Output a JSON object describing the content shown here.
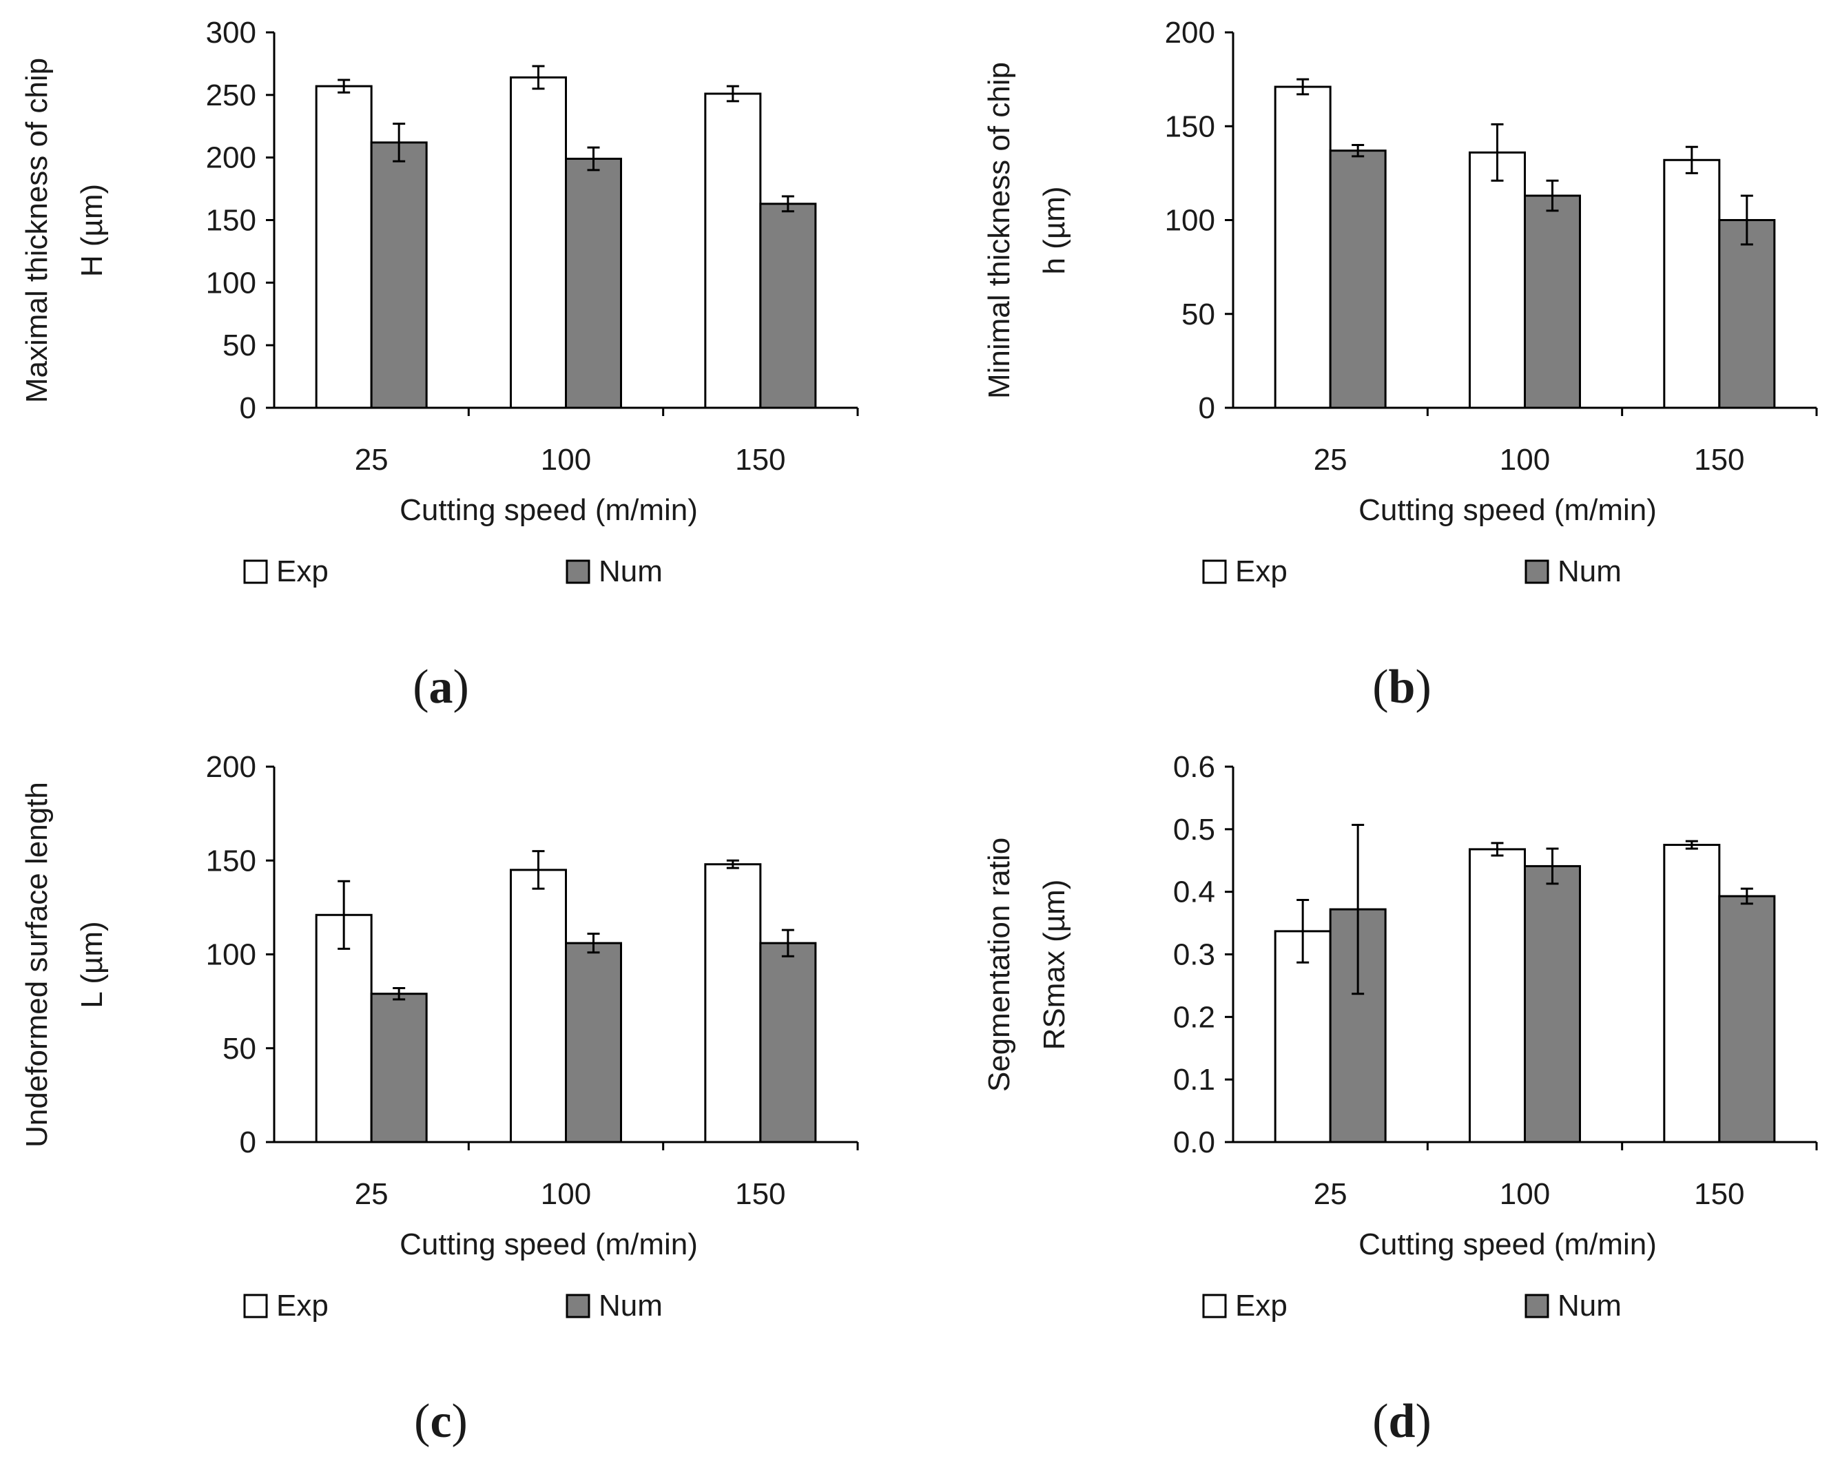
{
  "figure": {
    "type": "bar-chart-panels",
    "panels": 4
  },
  "colors": {
    "exp": "#ffffff",
    "num": "#7f7f7f",
    "axis": "#000000",
    "outline": "#000000"
  },
  "chart_data": [
    {
      "type": "bar",
      "panel": "a",
      "panel_label": {
        "open": "(",
        "letter": "a",
        "close": ")"
      },
      "ylabel": [
        "Maximal thickness of chip",
        "H (µm)"
      ],
      "xlabel": "Cutting speed (m/min)",
      "categories": [
        "25",
        "100",
        "150"
      ],
      "ylim": [
        0,
        300
      ],
      "yticks": [
        "0",
        "50",
        "100",
        "150",
        "200",
        "250",
        "300"
      ],
      "series": [
        {
          "name": "Exp",
          "values": [
            257,
            264,
            251
          ],
          "errors": [
            5,
            9,
            6
          ]
        },
        {
          "name": "Num",
          "values": [
            212,
            199,
            163
          ],
          "errors": [
            15,
            9,
            6
          ]
        }
      ]
    },
    {
      "type": "bar",
      "panel": "b",
      "panel_label": {
        "open": "(",
        "letter": "b",
        "close": ")"
      },
      "ylabel": [
        "Minimal thickness of chip",
        "h (µm)"
      ],
      "xlabel": "Cutting speed (m/min)",
      "categories": [
        "25",
        "100",
        "150"
      ],
      "ylim": [
        0,
        200
      ],
      "yticks": [
        "0",
        "50",
        "100",
        "150",
        "200"
      ],
      "series": [
        {
          "name": "Exp",
          "values": [
            171,
            136,
            132
          ],
          "errors": [
            4,
            15,
            7
          ]
        },
        {
          "name": "Num",
          "values": [
            137,
            113,
            100
          ],
          "errors": [
            3,
            8,
            13
          ]
        }
      ]
    },
    {
      "type": "bar",
      "panel": "c",
      "panel_label": {
        "open": "(",
        "letter": "c",
        "close": ")"
      },
      "ylabel": [
        "Undeformed surface length",
        "L (µm)"
      ],
      "xlabel": "Cutting speed (m/min)",
      "categories": [
        "25",
        "100",
        "150"
      ],
      "ylim": [
        0,
        200
      ],
      "yticks": [
        "0",
        "50",
        "100",
        "150",
        "200"
      ],
      "series": [
        {
          "name": "Exp",
          "values": [
            121,
            145,
            148
          ],
          "errors": [
            18,
            10,
            2
          ]
        },
        {
          "name": "Num",
          "values": [
            79,
            106,
            106
          ],
          "errors": [
            3,
            5,
            7
          ]
        }
      ]
    },
    {
      "type": "bar",
      "panel": "d",
      "panel_label": {
        "open": "(",
        "letter": "d",
        "close": ")"
      },
      "ylabel": [
        "Segmentation ratio",
        "RSmax (µm)"
      ],
      "xlabel": "Cutting speed (m/min)",
      "categories": [
        "25",
        "100",
        "150"
      ],
      "ylim": [
        0,
        0.6
      ],
      "yticks": [
        "0.0",
        "0.1",
        "0.2",
        "0.3",
        "0.4",
        "0.5",
        "0.6"
      ],
      "series": [
        {
          "name": "Exp",
          "values": [
            0.337,
            0.468,
            0.475
          ],
          "errors": [
            0.05,
            0.01,
            0.006
          ]
        },
        {
          "name": "Num",
          "values": [
            0.372,
            0.441,
            0.393
          ],
          "errors": [
            0.135,
            0.028,
            0.012
          ]
        }
      ]
    }
  ]
}
